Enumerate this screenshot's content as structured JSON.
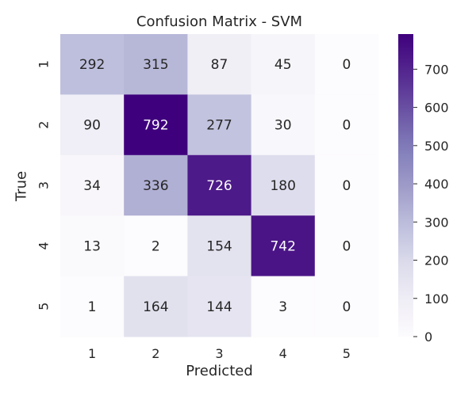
{
  "chart_data": {
    "type": "heatmap",
    "title": "Confusion Matrix - SVM",
    "xlabel": "Predicted",
    "ylabel": "True",
    "x_categories": [
      "1",
      "2",
      "3",
      "4",
      "5"
    ],
    "y_categories": [
      "1",
      "2",
      "3",
      "4",
      "5"
    ],
    "values": [
      [
        292,
        315,
        87,
        45,
        0
      ],
      [
        90,
        792,
        277,
        30,
        0
      ],
      [
        34,
        336,
        726,
        180,
        0
      ],
      [
        13,
        2,
        154,
        742,
        0
      ],
      [
        1,
        164,
        144,
        3,
        0
      ]
    ],
    "colormap": "Purples",
    "colorbar": {
      "range": [
        0,
        792
      ],
      "ticks": [
        0,
        100,
        200,
        300,
        400,
        500,
        600,
        700
      ]
    },
    "colors": {
      "low": "#fcfbfd",
      "high": "#3f007d",
      "text_dark": "#262626",
      "text_light": "#ffffff"
    }
  }
}
